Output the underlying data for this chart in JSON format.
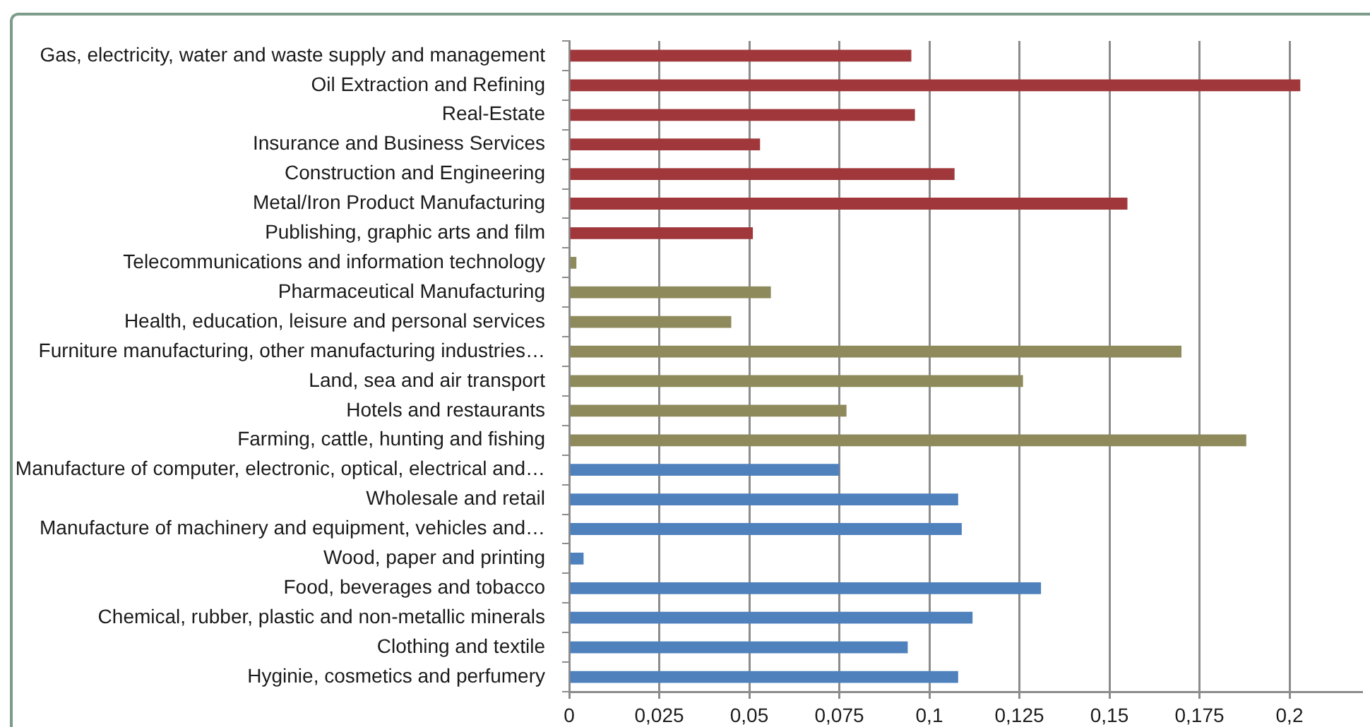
{
  "chart_data": {
    "type": "bar",
    "orientation": "horizontal",
    "categories": [
      "Gas, electricity, water and waste supply and management",
      "Oil Extraction and Refining",
      "Real-Estate",
      "Insurance and Business Services",
      "Construction and Engineering",
      "Metal/Iron Product Manufacturing",
      "Publishing, graphic arts and film",
      "Telecommunications and information technology",
      "Pharmaceutical Manufacturing",
      "Health, education, leisure and personal services",
      "Furniture manufacturing, other manufacturing industries…",
      "Land, sea and air transport",
      "Hotels and restaurants",
      "Farming, cattle, hunting and fishing",
      "Manufacture of computer, electronic, optical, electrical and…",
      "Wholesale and retail",
      "Manufacture of machinery and equipment, vehicles and…",
      "Wood, paper and printing",
      "Food, beverages and tobacco",
      "Chemical, rubber, plastic and non-metallic minerals",
      "Clothing and textile",
      "Hyginie, cosmetics and perfumery"
    ],
    "values": [
      0.095,
      0.203,
      0.096,
      0.053,
      0.107,
      0.155,
      0.051,
      0.002,
      0.056,
      0.045,
      0.17,
      0.126,
      0.077,
      0.188,
      0.075,
      0.108,
      0.109,
      0.004,
      0.131,
      0.112,
      0.094,
      0.108
    ],
    "colors": [
      "#a0383b",
      "#a0383b",
      "#a0383b",
      "#a0383b",
      "#a0383b",
      "#a0383b",
      "#a0383b",
      "#8e8a5c",
      "#8e8a5c",
      "#8e8a5c",
      "#8e8a5c",
      "#8e8a5c",
      "#8e8a5c",
      "#8e8a5c",
      "#4f81bd",
      "#4f81bd",
      "#4f81bd",
      "#4f81bd",
      "#4f81bd",
      "#4f81bd",
      "#4f81bd",
      "#4f81bd"
    ],
    "xlim": [
      0,
      0.22
    ],
    "xticks": [
      0,
      {
        "value": 0.025,
        "label": "0,025"
      },
      {
        "value": 0.05,
        "label": "0,05"
      },
      {
        "value": 0.075,
        "label": "0,075"
      },
      {
        "value": 0.1,
        "label": "0,1"
      },
      {
        "value": 0.125,
        "label": "0,125"
      },
      {
        "value": 0.15,
        "label": "0,15"
      },
      {
        "value": 0.175,
        "label": "0,175"
      },
      {
        "value": 0.2,
        "label": "0,2"
      }
    ],
    "grid": "x",
    "legend": false
  }
}
